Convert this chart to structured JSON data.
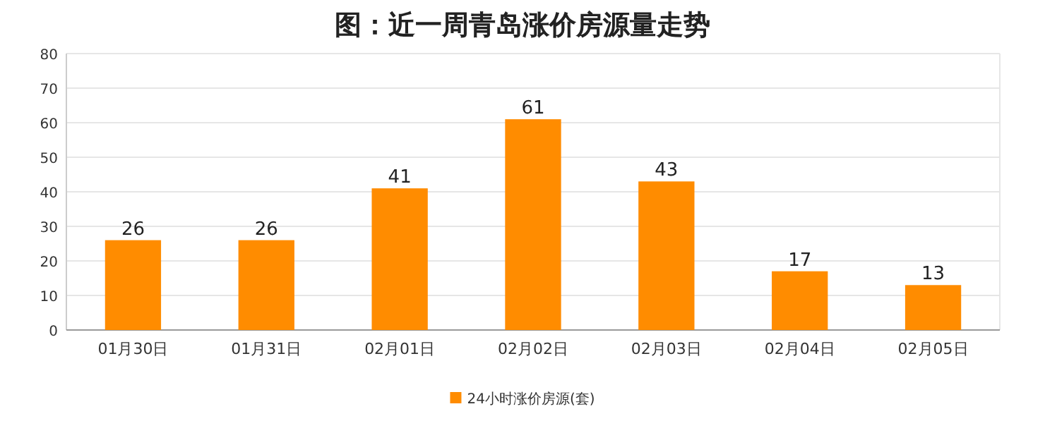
{
  "chart_data": {
    "type": "bar",
    "title": "图：近一周青岛涨价房源量走势",
    "categories": [
      "01月30日",
      "01月31日",
      "02月01日",
      "02月02日",
      "02月03日",
      "02月04日",
      "02月05日"
    ],
    "series": [
      {
        "name": "24小时涨价房源(套)",
        "color": "#ff8c00",
        "values": [
          26,
          26,
          41,
          61,
          43,
          17,
          13
        ]
      }
    ],
    "ylim": [
      0,
      80
    ],
    "yticks": [
      0,
      10,
      20,
      30,
      40,
      50,
      60,
      70,
      80
    ],
    "grid": "y",
    "legend": "bottom",
    "data_labels": true
  }
}
